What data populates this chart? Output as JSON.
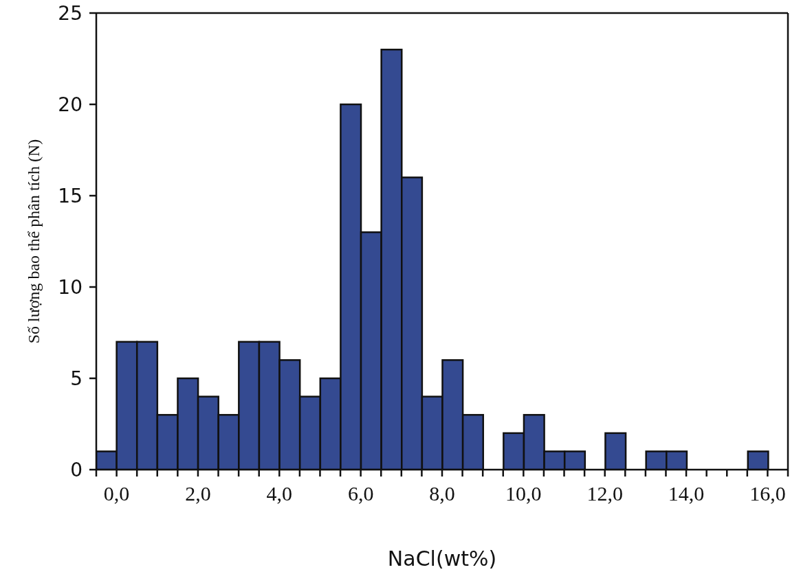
{
  "chart_data": {
    "type": "histogram",
    "xlabel": "NaCl(wt%)",
    "ylabel": "Số lượng bao thể phân tích (N)",
    "color": "#344a91",
    "bins": [
      -0.5,
      0,
      0.5,
      1,
      1.5,
      2,
      2.5,
      3,
      3.5,
      4,
      4.5,
      5,
      5.5,
      6,
      6.5,
      7,
      7.5,
      8,
      8.5,
      9,
      9.5,
      10,
      10.5,
      11,
      11.5,
      12,
      12.5,
      13,
      13.5,
      14,
      14.5,
      15,
      15.5,
      16,
      16.5
    ],
    "values": [
      1,
      7,
      7,
      3,
      5,
      4,
      3,
      7,
      7,
      6,
      4,
      5,
      20,
      13,
      23,
      16,
      4,
      6,
      3,
      0,
      2,
      3,
      1,
      1,
      0,
      2,
      0,
      1,
      1,
      0,
      0,
      0,
      1,
      0
    ],
    "xlim": [
      -0.5,
      16.5
    ],
    "xticks": [
      {
        "value": -0.5,
        "label": null
      },
      {
        "value": 0,
        "label": "0,0"
      },
      {
        "value": 0.5,
        "label": null
      },
      {
        "value": 1,
        "label": null
      },
      {
        "value": 1.5,
        "label": null
      },
      {
        "value": 2,
        "label": "2,0"
      },
      {
        "value": 2.5,
        "label": null
      },
      {
        "value": 3,
        "label": null
      },
      {
        "value": 3.5,
        "label": null
      },
      {
        "value": 4,
        "label": "4,0"
      },
      {
        "value": 4.5,
        "label": null
      },
      {
        "value": 5,
        "label": null
      },
      {
        "value": 5.5,
        "label": null
      },
      {
        "value": 6,
        "label": "6,0"
      },
      {
        "value": 6.5,
        "label": null
      },
      {
        "value": 7,
        "label": null
      },
      {
        "value": 7.5,
        "label": null
      },
      {
        "value": 8,
        "label": "8,0"
      },
      {
        "value": 8.5,
        "label": null
      },
      {
        "value": 9,
        "label": null
      },
      {
        "value": 9.5,
        "label": null
      },
      {
        "value": 10,
        "label": "10,0"
      },
      {
        "value": 10.5,
        "label": null
      },
      {
        "value": 11,
        "label": null
      },
      {
        "value": 11.5,
        "label": null
      },
      {
        "value": 12,
        "label": "12,0"
      },
      {
        "value": 12.5,
        "label": null
      },
      {
        "value": 13,
        "label": null
      },
      {
        "value": 13.5,
        "label": null
      },
      {
        "value": 14,
        "label": "14,0"
      },
      {
        "value": 14.5,
        "label": null
      },
      {
        "value": 15,
        "label": null
      },
      {
        "value": 15.5,
        "label": null
      },
      {
        "value": 16,
        "label": "16,0"
      },
      {
        "value": 16.5,
        "label": null
      }
    ],
    "ylim": [
      0,
      25
    ],
    "yticks": [
      0,
      5,
      10,
      15,
      20,
      25
    ]
  }
}
